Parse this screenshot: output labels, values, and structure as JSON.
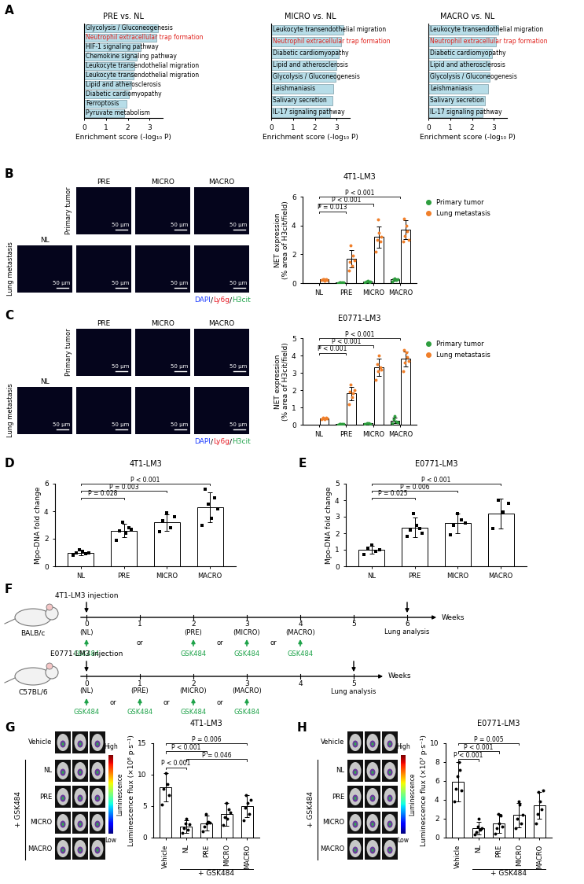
{
  "chart_data": [
    {
      "panel": "A",
      "type": "bar",
      "orientation": "horizontal",
      "title": "PRE vs. NL",
      "x_label": "Enrichment score (-log₁₀ P)",
      "categories": [
        "Glycolysis / Gluconeogenesis",
        "Neutrophil extracellular trap formation",
        "HIF-1 signaling pathway",
        "Chemokine signaling pathway",
        "Leukocyte transendothelial migration",
        "Leukocyte transendothelial migration",
        "Lipid and atherosclerosis",
        "Diabetic cardiomyopathy",
        "Ferroptosis",
        "Pyruvate metabolism"
      ],
      "values": [
        3.4,
        3.3,
        2.6,
        2.4,
        2.3,
        2.25,
        2.15,
        2.05,
        1.95,
        1.85
      ],
      "color": "#b7dde8",
      "xlim": [
        0,
        3.6
      ],
      "xticks": [
        0,
        1,
        2,
        3
      ],
      "tick_labels": "x"
    },
    {
      "type": "bar",
      "orientation": "horizontal",
      "title": "MICRO vs. NL",
      "x_label": "Enrichment score (-log₁₀ P)",
      "categories": [
        "Leukocyte transendothelial migration",
        "Neutrophil extracellular trap formation",
        "Diabetic cardiomyopathy",
        "Lipid and atherosclerosis",
        "Glycolysis / Gluconeogenesis",
        "Leishmaniasis",
        "Salivary secretion",
        "IL-17 signaling pathway"
      ],
      "values": [
        3.3,
        3.2,
        3.1,
        3.0,
        2.95,
        2.85,
        2.8,
        2.7
      ],
      "color": "#b7dde8",
      "xlim": [
        0,
        3.6
      ],
      "xticks": [
        0,
        1,
        2,
        3
      ],
      "tick_labels": "x"
    },
    {
      "type": "bar",
      "orientation": "horizontal",
      "title": "MACRO vs. NL",
      "x_label": "Enrichment score (-log₁₀ P)",
      "categories": [
        "Leukocyte transendothelial migration",
        "Neutrophil extracellular trap formation",
        "Diabetic cardiomyopathy",
        "Lipid and atherosclerosis",
        "Glycolysis / Gluconeogenesis",
        "Leishmaniasis",
        "Salivary secretion",
        "IL-17 signaling pathway"
      ],
      "values": [
        3.2,
        3.1,
        2.9,
        2.8,
        2.8,
        2.75,
        2.6,
        2.5
      ],
      "color": "#b7dde8",
      "xlim": [
        0,
        3.6
      ],
      "xticks": [
        0,
        1,
        2,
        3
      ],
      "tick_labels": "x"
    },
    {
      "panel": "B",
      "type": "bar",
      "title": "4T1-LM3",
      "y_label": "NET expression\n(% area of H3cit/field)",
      "categories": [
        "NL",
        "PRE",
        "MICRO",
        "MACRO"
      ],
      "series": [
        {
          "name": "Primary tumor",
          "color": "#2e9e3e",
          "values": [
            null,
            0.05,
            0.1,
            0.25
          ],
          "errors": [
            null,
            0.03,
            0.05,
            0.1
          ],
          "points": [
            [],
            [
              0.02,
              0.05,
              0.08,
              0.04,
              0.06
            ],
            [
              0.05,
              0.1,
              0.15,
              0.08,
              0.12
            ],
            [
              0.1,
              0.3,
              0.35,
              0.2,
              0.25
            ]
          ]
        },
        {
          "name": "Lung metastasis",
          "color": "#f07f2a",
          "values": [
            0.25,
            1.7,
            3.2,
            3.7
          ],
          "errors": [
            0.06,
            0.6,
            0.75,
            0.65
          ],
          "points": [
            [
              0.2,
              0.3,
              0.25,
              0.15,
              0.3,
              0.22
            ],
            [
              0.9,
              1.5,
              2.6,
              1.2,
              1.9,
              1.6
            ],
            [
              2.2,
              3.0,
              4.4,
              3.5,
              2.9,
              3.2
            ],
            [
              2.9,
              4.5,
              3.3,
              4.0,
              3.6,
              3.0
            ]
          ]
        }
      ],
      "ylim": [
        0,
        6
      ],
      "yticks": [
        0,
        2,
        4,
        6
      ],
      "legend": "right",
      "annotations": [
        {
          "from": "NL",
          "to": "PRE",
          "text": "P = 0.013"
        },
        {
          "from": "NL",
          "to": "MICRO",
          "text": "P < 0.001"
        },
        {
          "from": "NL",
          "to": "MACRO",
          "text": "P < 0.001"
        }
      ]
    },
    {
      "panel": "C",
      "type": "bar",
      "title": "E0771-LM3",
      "y_label": "NET expression\n(% area of H3cit/field)",
      "categories": [
        "NL",
        "PRE",
        "MICRO",
        "MACRO"
      ],
      "series": [
        {
          "name": "Primary tumor",
          "color": "#2e9e3e",
          "values": [
            null,
            0.04,
            0.07,
            0.25
          ],
          "errors": [
            null,
            0.02,
            0.02,
            0.15
          ],
          "points": [
            [],
            [
              0.02,
              0.05,
              0.04,
              0.06,
              0.03
            ],
            [
              0.05,
              0.08,
              0.1,
              0.06
            ],
            [
              0.1,
              0.3,
              0.5,
              0.2,
              0.15
            ]
          ]
        },
        {
          "name": "Lung metastasis",
          "color": "#f07f2a",
          "values": [
            0.35,
            1.8,
            3.3,
            3.8
          ],
          "errors": [
            0.05,
            0.4,
            0.5,
            0.45
          ],
          "points": [
            [
              0.3,
              0.4,
              0.35,
              0.3,
              0.4,
              0.35
            ],
            [
              1.2,
              1.9,
              2.3,
              1.6,
              1.8,
              2.0
            ],
            [
              2.6,
              3.5,
              3.1,
              4.0,
              3.3,
              3.2
            ],
            [
              3.1,
              4.3,
              3.6,
              4.2,
              3.9,
              3.7
            ]
          ]
        }
      ],
      "ylim": [
        0,
        5
      ],
      "yticks": [
        0,
        1,
        2,
        3,
        4,
        5
      ],
      "legend": "right",
      "annotations": [
        {
          "from": "NL",
          "to": "PRE",
          "text": "P < 0.001"
        },
        {
          "from": "NL",
          "to": "MICRO",
          "text": "P < 0.001"
        },
        {
          "from": "NL",
          "to": "MACRO",
          "text": "P < 0.001"
        }
      ]
    },
    {
      "panel": "D",
      "type": "bar",
      "title": "4T1-LM3",
      "y_label": "Mpo-DNA fold change",
      "categories": [
        "NL",
        "PRE",
        "MICRO",
        "MACRO"
      ],
      "values": [
        1.0,
        2.6,
        3.2,
        4.3
      ],
      "errors": [
        0.2,
        0.5,
        0.6,
        1.1
      ],
      "points": [
        [
          0.8,
          1.0,
          1.2,
          1.1,
          0.9,
          1.0
        ],
        [
          1.9,
          2.6,
          3.2,
          2.4,
          2.8,
          2.7
        ],
        [
          2.5,
          3.3,
          3.9,
          2.8,
          3.6
        ],
        [
          3.0,
          5.6,
          4.5,
          3.5,
          5.0,
          4.2
        ]
      ],
      "color": "#000000",
      "marker": "square",
      "ylim": [
        0,
        6
      ],
      "yticks": [
        0,
        2,
        4,
        6
      ],
      "annotations": [
        {
          "from": "NL",
          "to": "PRE",
          "text": "P = 0.028"
        },
        {
          "from": "NL",
          "to": "MICRO",
          "text": "P = 0.003"
        },
        {
          "from": "NL",
          "to": "MACRO",
          "text": "P < 0.001"
        }
      ]
    },
    {
      "panel": "E",
      "type": "bar",
      "title": "E0771-LM3",
      "y_label": "Mpo-DNA fold change",
      "categories": [
        "NL",
        "PRE",
        "MICRO",
        "MACRO"
      ],
      "values": [
        1.0,
        2.35,
        2.6,
        3.2
      ],
      "errors": [
        0.25,
        0.6,
        0.6,
        0.9
      ],
      "points": [
        [
          0.7,
          1.1,
          1.3,
          0.9,
          1.0
        ],
        [
          1.8,
          2.2,
          3.2,
          2.5,
          2.3,
          2.0
        ],
        [
          1.9,
          2.5,
          3.2,
          2.8,
          2.6
        ],
        [
          2.3,
          4.0,
          3.3,
          3.8
        ]
      ],
      "color": "#000000",
      "marker": "square",
      "ylim": [
        0,
        5
      ],
      "yticks": [
        0,
        1,
        2,
        3,
        4,
        5
      ],
      "annotations": [
        {
          "from": "NL",
          "to": "PRE",
          "text": "P = 0.025"
        },
        {
          "from": "NL",
          "to": "MICRO",
          "text": "P = 0.006"
        },
        {
          "from": "NL",
          "to": "MACRO",
          "text": "P < 0.001"
        }
      ]
    },
    {
      "panel": "G",
      "type": "bar",
      "title": "4T1-LM3",
      "y_label": "Luminescence flux (×10⁸ p·s⁻¹)",
      "categories": [
        "Vehicle",
        "NL",
        "PRE",
        "MICRO",
        "MACRO"
      ],
      "values": [
        8.0,
        1.8,
        2.3,
        3.7,
        5.0
      ],
      "errors": [
        2.2,
        1.0,
        1.2,
        1.8,
        1.8
      ],
      "points": [
        [
          5.2,
          7.8,
          10.2,
          8.5,
          6.8
        ],
        [
          0.8,
          1.5,
          2.2,
          3.0,
          1.2,
          2.1
        ],
        [
          1.0,
          1.8,
          3.8,
          2.2,
          2.5,
          2.4
        ],
        [
          2.0,
          3.2,
          5.5,
          3.0,
          4.5,
          4.0
        ],
        [
          2.8,
          4.8,
          6.8,
          5.5,
          3.8,
          6.0
        ]
      ],
      "color": "#000000",
      "marker": "circle",
      "ylim": [
        0,
        15
      ],
      "yticks": [
        0,
        5,
        10,
        15
      ],
      "group_label": {
        "text": "+ GSK484",
        "from": "NL",
        "to": "MACRO"
      },
      "annotations": [
        {
          "from": "Vehicle",
          "to": "NL",
          "text": "P < 0.001"
        },
        {
          "from": "NL",
          "to": "MACRO",
          "text": "P = 0.046"
        },
        {
          "from": "Vehicle",
          "to": "PRE",
          "text": "P < 0.001"
        },
        {
          "from": "Vehicle",
          "to": "MACRO",
          "text": "P = 0.006"
        }
      ]
    },
    {
      "panel": "H",
      "type": "bar",
      "title": "E0771-LM3",
      "y_label": "Luminescence flux (×10⁷ p·s⁻¹)",
      "categories": [
        "Vehicle",
        "NL",
        "PRE",
        "MICRO",
        "MACRO"
      ],
      "values": [
        5.9,
        1.0,
        1.5,
        2.4,
        3.4
      ],
      "errors": [
        2.1,
        0.7,
        1.0,
        1.3,
        1.4
      ],
      "points": [
        [
          3.8,
          5.2,
          6.5,
          8.0,
          7.2,
          5.0
        ],
        [
          0.3,
          0.6,
          1.2,
          2.0,
          0.8,
          1.0
        ],
        [
          0.4,
          1.0,
          2.5,
          1.5,
          2.3,
          1.2
        ],
        [
          1.0,
          2.0,
          3.8,
          3.5,
          1.5,
          2.4
        ],
        [
          1.5,
          2.5,
          4.8,
          3.8,
          3.0,
          5.0
        ]
      ],
      "color": "#000000",
      "marker": "circle",
      "ylim": [
        0,
        10
      ],
      "yticks": [
        0,
        2,
        4,
        6,
        8,
        10
      ],
      "group_label": {
        "text": "+ GSK484",
        "from": "NL",
        "to": "MACRO"
      },
      "annotations": [
        {
          "from": "Vehicle",
          "to": "NL",
          "text": "P < 0.001"
        },
        {
          "from": "Vehicle",
          "to": "PRE",
          "text": "P < 0.001"
        },
        {
          "from": "Vehicle",
          "to": "MICRO",
          "text": "P = 0.005"
        }
      ]
    }
  ],
  "micrographs": [
    {
      "columns": [
        "PRE",
        "MICRO",
        "MACRO"
      ],
      "rows": [
        "Primary tumor",
        "Lung metastasis"
      ],
      "normal": "NL",
      "scale_bar": "50 μm",
      "stain": [
        {
          "text": "DAPI",
          "color": "#1f3fff"
        },
        {
          "text": "/",
          "color": "#000000"
        },
        {
          "text": "Ly6g",
          "color": "#e8202a"
        },
        {
          "text": "/",
          "color": "#000000"
        },
        {
          "text": "H3cit",
          "color": "#1fa34a"
        }
      ]
    },
    {
      "columns": [
        "PRE",
        "MICRO",
        "MACRO"
      ],
      "rows": [
        "Primary tumor",
        "Lung metastasis"
      ],
      "normal": "NL",
      "scale_bar": "50 μm",
      "stain": [
        {
          "text": "DAPI",
          "color": "#1f3fff"
        },
        {
          "text": "/",
          "color": "#000000"
        },
        {
          "text": "Ly6g",
          "color": "#e8202a"
        },
        {
          "text": "/",
          "color": "#000000"
        },
        {
          "text": "H3cit",
          "color": "#1fa34a"
        }
      ]
    }
  ],
  "timeline": {
    "panel": "F",
    "rows": [
      {
        "strain": "BALB/c",
        "injection": "4T1-LM3 injection",
        "axis_label": "Weeks",
        "weeks": [
          0,
          1,
          2,
          3,
          4,
          5,
          6
        ],
        "stages": [
          {
            "week": 0,
            "label": "(NL)"
          },
          {
            "week": 2,
            "label": "(PRE)"
          },
          {
            "week": 3,
            "label": "(MICRO)"
          },
          {
            "week": 4,
            "label": "(MACRO)"
          }
        ],
        "treatment": "GSK484",
        "separator": "or",
        "endpoint": {
          "week": 6,
          "label": "Lung analysis"
        }
      },
      {
        "strain": "C57BL/6",
        "injection": "E0771-LM3 injection",
        "axis_label": "Weeks",
        "weeks": [
          0,
          1,
          2,
          3,
          4,
          5
        ],
        "stages": [
          {
            "week": 0,
            "label": "(NL)"
          },
          {
            "week": 1,
            "label": "(PRE)"
          },
          {
            "week": 2,
            "label": "(MICRO)"
          },
          {
            "week": 3,
            "label": "(MACRO)"
          }
        ],
        "treatment": "GSK484",
        "separator": "or",
        "endpoint": {
          "week": 5,
          "label": "Lung analysis"
        }
      }
    ]
  },
  "luminescence_images": [
    {
      "rows": [
        "Vehicle",
        "NL",
        "PRE",
        "MICRO",
        "MACRO"
      ],
      "group_label": "+ GSK484",
      "colorbar": {
        "title": "Luminescence",
        "high": "High",
        "low": "Low"
      }
    },
    {
      "rows": [
        "Vehicle",
        "NL",
        "PRE",
        "MICRO",
        "MACRO"
      ],
      "group_label": "+ GSK484",
      "colorbar": {
        "title": "Luminescence",
        "high": "High",
        "low": "Low"
      }
    }
  ]
}
